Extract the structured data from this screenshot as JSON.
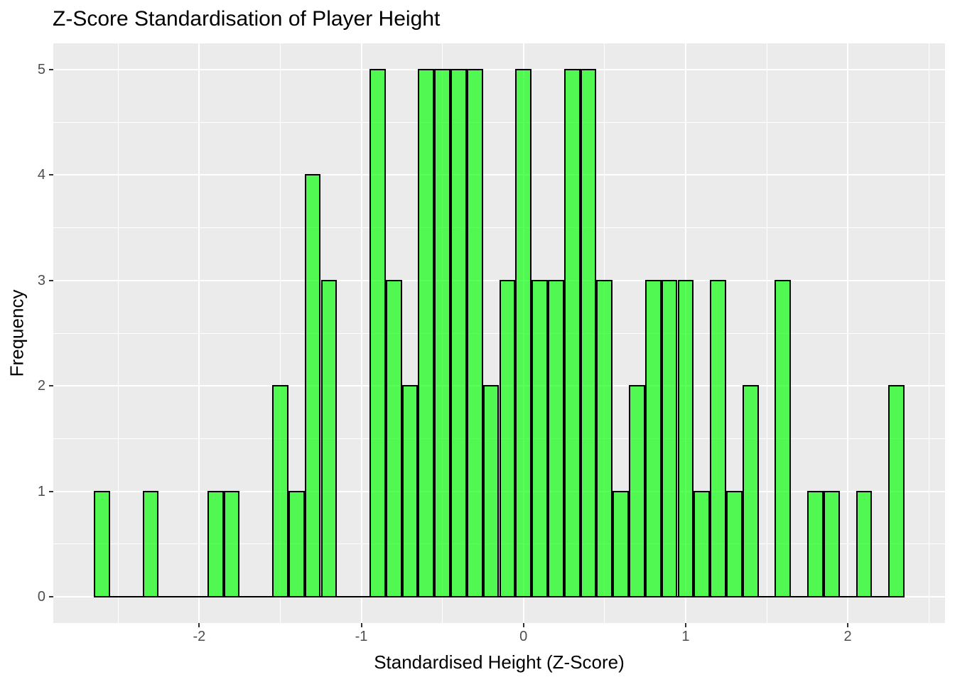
{
  "figure": {
    "background": "#FFFFFF"
  },
  "chart_data": {
    "type": "bar",
    "subtype": "histogram",
    "title": "Z-Score Standardisation of Player Height",
    "xlabel": "Standardised Height (Z-Score)",
    "ylabel": "Frequency",
    "bin_start": -2.65,
    "bin_width": 0.1,
    "counts": [
      1,
      0,
      0,
      1,
      0,
      0,
      0,
      1,
      1,
      0,
      0,
      2,
      1,
      4,
      3,
      0,
      0,
      5,
      3,
      2,
      5,
      5,
      5,
      5,
      2,
      3,
      5,
      3,
      3,
      5,
      5,
      3,
      1,
      2,
      3,
      3,
      3,
      1,
      3,
      1,
      2,
      0,
      3,
      0,
      1,
      1,
      0,
      1,
      0,
      2
    ],
    "total_count": 100,
    "x_tick_labels": [
      "-2",
      "-1",
      "0",
      "1",
      "2"
    ],
    "x_tick_values": [
      -2,
      -1,
      0,
      1,
      2
    ],
    "y_tick_labels": [
      "0",
      "1",
      "2",
      "3",
      "4",
      "5"
    ],
    "y_tick_values": [
      0,
      1,
      2,
      3,
      4,
      5
    ],
    "x_minor_values": [
      -2.5,
      -1.5,
      -0.5,
      0.5,
      1.5,
      2.5
    ],
    "y_minor_values": [
      0.5,
      1.5,
      2.5,
      3.5,
      4.5
    ],
    "x_range": [
      -2.9,
      2.6
    ],
    "y_range": [
      -0.25,
      5.25
    ],
    "grid": "on",
    "legend": "none",
    "style": {
      "panel_background": "#EBEBEB",
      "grid_color": "#FFFFFF",
      "bar_fill": "#00FF00",
      "bar_fill_opacity": 0.65,
      "bar_stroke": "#000000",
      "tick_label_color": "#4D4D4D",
      "axis_title_color": "#000000",
      "title_color": "#000000",
      "tick_mark_color": "#333333"
    }
  }
}
